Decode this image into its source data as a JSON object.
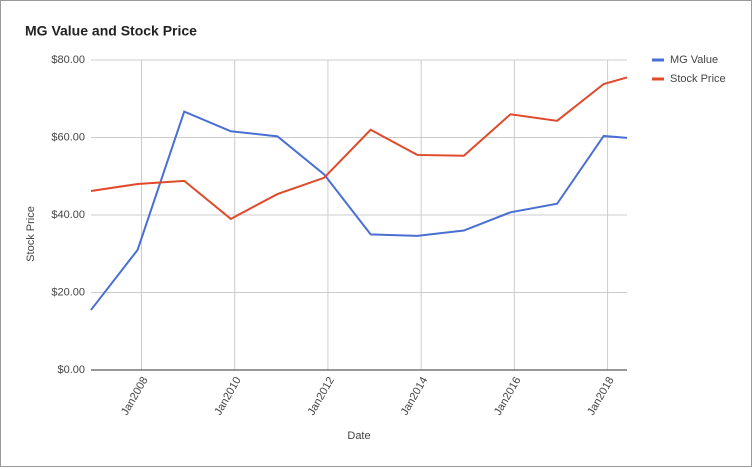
{
  "chart_data": {
    "type": "line",
    "title": "MG Value and Stock Price",
    "x_label": "Date",
    "y_label": "Stock Price",
    "x": [
      "2006-12",
      "2007-12",
      "2008-12",
      "2009-12",
      "2010-12",
      "2011-12",
      "2012-12",
      "2013-12",
      "2014-12",
      "2015-12",
      "2016-12",
      "2017-12",
      "2018-06"
    ],
    "series": [
      {
        "name": "MG Value",
        "color": "#4a6fd4",
        "values": [
          15.5,
          31,
          66.7,
          61.6,
          60.3,
          50.5,
          35,
          34.6,
          36,
          40.7,
          42.9,
          60.4,
          59.9
        ]
      },
      {
        "name": "Stock Price",
        "color": "#e0492a",
        "values": [
          46.2,
          48,
          48.8,
          39,
          45.4,
          49.6,
          62,
          55.5,
          55.3,
          66,
          64.3,
          73.8,
          75.5
        ]
      }
    ],
    "xlim": [
      "2006-12",
      "2018-06"
    ],
    "xticks": [
      {
        "value": "2008-01",
        "label": "Jan2008"
      },
      {
        "value": "2010-01",
        "label": "Jan2010"
      },
      {
        "value": "2012-01",
        "label": "Jan2012"
      },
      {
        "value": "2014-01",
        "label": "Jan2014"
      },
      {
        "value": "2016-01",
        "label": "Jan2016"
      },
      {
        "value": "2018-01",
        "label": "Jan2018"
      }
    ],
    "ylim": [
      0,
      80
    ],
    "yticks": [
      {
        "value": 0,
        "label": "$0.00"
      },
      {
        "value": 20,
        "label": "$20.00"
      },
      {
        "value": 40,
        "label": "$40.00"
      },
      {
        "value": 60,
        "label": "$60.00"
      },
      {
        "value": 80,
        "label": "$80.00"
      }
    ],
    "grid": true,
    "legend": "right"
  }
}
